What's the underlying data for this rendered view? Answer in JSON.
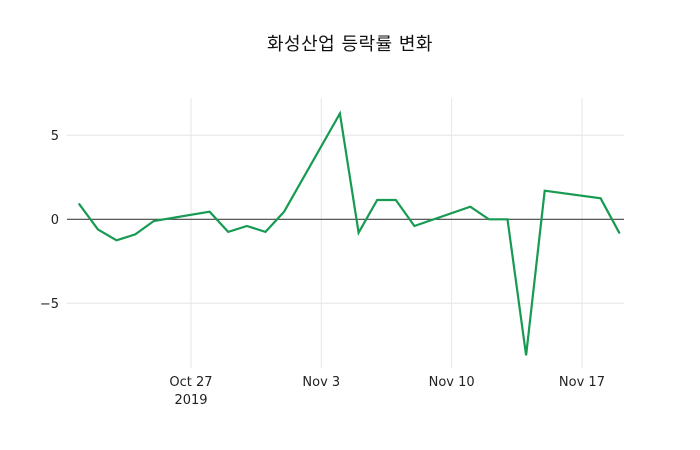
{
  "title": "화성산업 등락률 변화",
  "colors": {
    "background": "#ffffff",
    "line": "#179a52",
    "grid": "#e6e6e6",
    "zero_line": "#444444",
    "text": "#222222",
    "title_text": "#111111"
  },
  "chart_data": {
    "type": "line",
    "title": "화성산업 등락률 변화",
    "xlabel": "",
    "ylabel": "",
    "grid": true,
    "legend": "none",
    "line_color": "#179a52",
    "ylim": [
      -8.7,
      7.2
    ],
    "x": [
      "2019-10-21",
      "2019-10-22",
      "2019-10-23",
      "2019-10-24",
      "2019-10-25",
      "2019-10-28",
      "2019-10-29",
      "2019-10-30",
      "2019-10-31",
      "2019-11-01",
      "2019-11-04",
      "2019-11-05",
      "2019-11-06",
      "2019-11-07",
      "2019-11-08",
      "2019-11-11",
      "2019-11-12",
      "2019-11-13",
      "2019-11-14",
      "2019-11-15",
      "2019-11-18",
      "2019-11-19"
    ],
    "values": [
      0.9,
      -0.6,
      -1.25,
      -0.9,
      -0.1,
      0.45,
      -0.75,
      -0.4,
      -0.75,
      0.45,
      6.3,
      -0.8,
      1.15,
      1.15,
      -0.4,
      0.75,
      0.0,
      0.0,
      -8.1,
      1.7,
      1.25,
      -0.8
    ],
    "yticks": [
      5,
      0,
      -5
    ],
    "ytick_labels": [
      "5",
      "0",
      "−5"
    ],
    "xticks": [
      {
        "date": "2019-10-27",
        "label": "Oct 27",
        "sublabel": "2019"
      },
      {
        "date": "2019-11-03",
        "label": "Nov 3",
        "sublabel": ""
      },
      {
        "date": "2019-11-10",
        "label": "Nov 10",
        "sublabel": ""
      },
      {
        "date": "2019-11-17",
        "label": "Nov 17",
        "sublabel": ""
      }
    ]
  }
}
